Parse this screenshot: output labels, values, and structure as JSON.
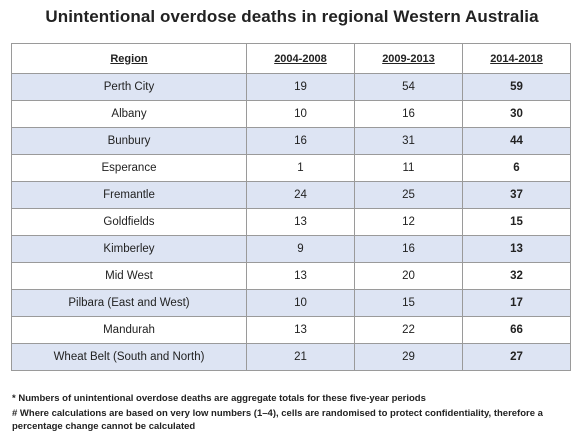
{
  "title": "Unintentional overdose deaths in regional Western Australia",
  "table": {
    "headers": [
      "Region",
      "2004-2008",
      "2009-2013",
      "2014-2018"
    ],
    "rows": [
      {
        "region": "Perth City",
        "v1": "19",
        "v2": "54",
        "v3": "59"
      },
      {
        "region": "Albany",
        "v1": "10",
        "v2": "16",
        "v3": "30"
      },
      {
        "region": "Bunbury",
        "v1": "16",
        "v2": "31",
        "v3": "44"
      },
      {
        "region": "Esperance",
        "v1": "1",
        "v2": "11",
        "v3": "6"
      },
      {
        "region": "Fremantle",
        "v1": "24",
        "v2": "25",
        "v3": "37"
      },
      {
        "region": "Goldfields",
        "v1": "13",
        "v2": "12",
        "v3": "15"
      },
      {
        "region": "Kimberley",
        "v1": "9",
        "v2": "16",
        "v3": "13"
      },
      {
        "region": "Mid West",
        "v1": "13",
        "v2": "20",
        "v3": "32"
      },
      {
        "region": "Pilbara (East and West)",
        "v1": "10",
        "v2": "15",
        "v3": "17"
      },
      {
        "region": "Mandurah",
        "v1": "13",
        "v2": "22",
        "v3": "66"
      },
      {
        "region": "Wheat Belt (South and North)",
        "v1": "21",
        "v2": "29",
        "v3": "27"
      }
    ]
  },
  "notes": {
    "note1": "* Numbers of unintentional overdose deaths are aggregate totals for these five-year periods",
    "note2": "# Where calculations are based on very low numbers (1–4), cells are randomised to protect confidentiality, therefore a percentage change cannot be calculated"
  },
  "colors": {
    "row_shade": "#dde4f3",
    "border": "#9a9a9a"
  }
}
